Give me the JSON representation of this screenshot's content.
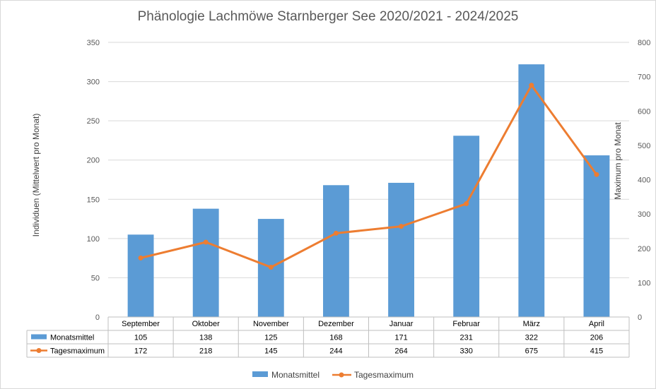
{
  "chart_data": {
    "type": "bar",
    "title": "Phänologie Lachmöwe Starnberger See 2020/2021 - 2024/2025",
    "categories": [
      "September",
      "Oktober",
      "November",
      "Dezember",
      "Januar",
      "Februar",
      "März",
      "April"
    ],
    "series": [
      {
        "name": "Monatsmittel",
        "type": "bar",
        "axis": "left",
        "color": "#5b9bd5",
        "values": [
          105,
          138,
          125,
          168,
          171,
          231,
          322,
          206
        ]
      },
      {
        "name": "Tagesmaximum",
        "type": "line",
        "axis": "right",
        "color": "#ed7d31",
        "values": [
          172,
          218,
          145,
          244,
          264,
          330,
          675,
          415
        ]
      }
    ],
    "ylabel": "Individuen (Mittelwert pro Monat)",
    "y2label": "Maximum pro Monat",
    "ylim": [
      0,
      350
    ],
    "y2lim": [
      0,
      800
    ],
    "yticks": [
      "0",
      "50",
      "100",
      "150",
      "200",
      "250",
      "300",
      "350"
    ],
    "y2ticks": [
      "0",
      "100",
      "200",
      "300",
      "400",
      "500",
      "600",
      "700",
      "800"
    ],
    "grid": true,
    "data_table": true,
    "legend": "bottom"
  }
}
